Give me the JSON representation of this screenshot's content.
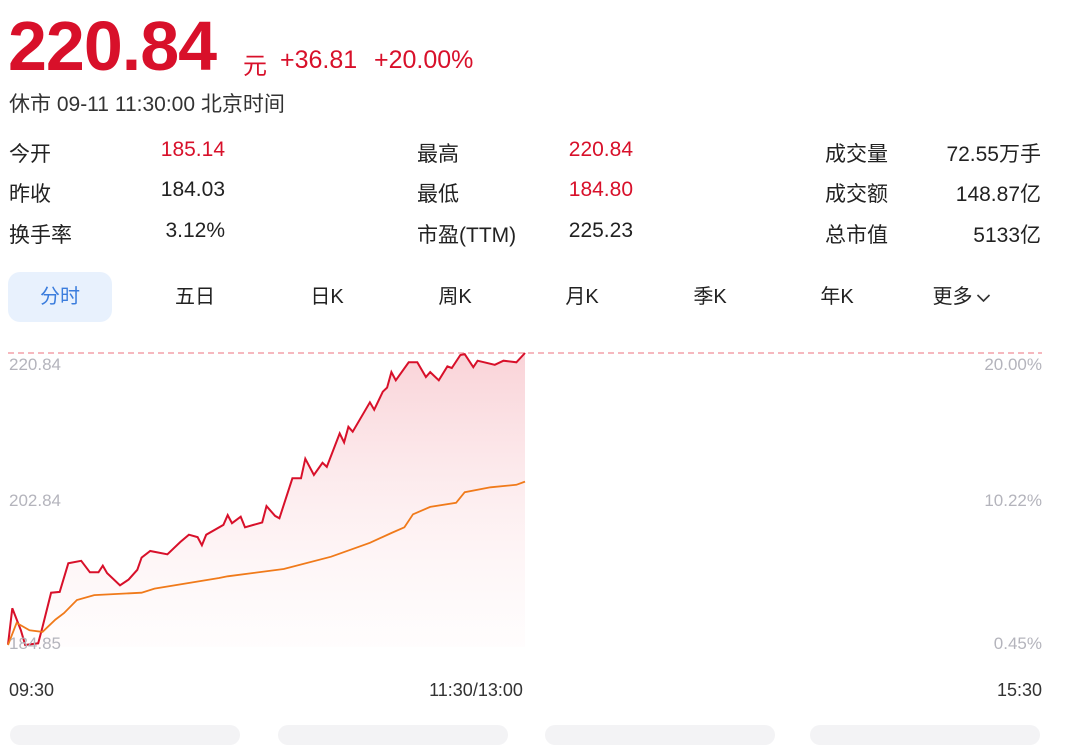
{
  "quote": {
    "price": "220.84",
    "unit": "元",
    "change": "+36.81",
    "change_pct": "+20.00%",
    "status": "休市 09-11 11:30:00 北京时间"
  },
  "stats": [
    [
      {
        "label": "今开",
        "value": "185.14",
        "red": true
      },
      {
        "label": "最高",
        "value": "220.84",
        "red": true
      },
      {
        "label": "成交量",
        "value": "72.55万手",
        "red": false
      }
    ],
    [
      {
        "label": "昨收",
        "value": "184.03",
        "red": false
      },
      {
        "label": "最低",
        "value": "184.80",
        "red": true
      },
      {
        "label": "成交额",
        "value": "148.87亿",
        "red": false
      }
    ],
    [
      {
        "label": "换手率",
        "value": "3.12%",
        "red": false
      },
      {
        "label": "市盈(TTM)",
        "value": "225.23",
        "red": false
      },
      {
        "label": "总市值",
        "value": "5133亿",
        "red": false
      }
    ]
  ],
  "tabs": [
    {
      "label": "分时",
      "active": true
    },
    {
      "label": "五日"
    },
    {
      "label": "日K"
    },
    {
      "label": "周K"
    },
    {
      "label": "月K"
    },
    {
      "label": "季K"
    },
    {
      "label": "年K"
    },
    {
      "label": "更多"
    }
  ],
  "colors": {
    "up": "#d8102a",
    "avg": "#f07a1a",
    "active_tab": "#3b7ddd"
  },
  "chart_data": {
    "type": "line",
    "y_left_ticks": [
      "220.84",
      "202.84",
      "184.85"
    ],
    "y_right_ticks": [
      "20.00%",
      "10.22%",
      "0.45%"
    ],
    "x_ticks": [
      "09:30",
      "11:30/13:00",
      "15:30"
    ],
    "ylim": [
      184.85,
      220.84
    ],
    "x_unit": "minutes since 09:30 trading",
    "xlim": [
      0,
      240
    ],
    "reference_line": 220.84,
    "series": [
      {
        "key": "price",
        "color": "#d8102a",
        "x": [
          0,
          1,
          3,
          4,
          7,
          8,
          10,
          12,
          14,
          17,
          19,
          21,
          22,
          23,
          26,
          28,
          30,
          31,
          33,
          37,
          40,
          42,
          44,
          45,
          46,
          50,
          51,
          52,
          54,
          55,
          59,
          60,
          62,
          63,
          66,
          68,
          69,
          71,
          73,
          74,
          77,
          78,
          79,
          80,
          84,
          85,
          87,
          88,
          89,
          90,
          93,
          95,
          97,
          98,
          100,
          102,
          103,
          105,
          106,
          108,
          109,
          113,
          115,
          118,
          120
        ],
        "y": [
          185.14,
          189.6,
          186.9,
          185.1,
          185.3,
          187.3,
          191.5,
          191.6,
          195.1,
          195.4,
          194.0,
          194.0,
          194.8,
          193.9,
          192.4,
          193.1,
          194.3,
          195.8,
          196.6,
          196.2,
          197.7,
          198.6,
          198.3,
          197.3,
          198.6,
          199.8,
          201.0,
          200.0,
          200.8,
          199.5,
          200.1,
          202.1,
          200.9,
          200.6,
          205.5,
          205.5,
          207.9,
          205.9,
          207.4,
          206.9,
          211.0,
          209.9,
          211.8,
          211.2,
          214.8,
          213.9,
          216.1,
          216.6,
          218.5,
          217.5,
          219.7,
          219.7,
          217.9,
          218.5,
          217.5,
          219.2,
          219.0,
          220.6,
          220.7,
          219.1,
          219.9,
          219.4,
          219.9,
          219.7,
          220.84
        ]
      },
      {
        "key": "average",
        "color": "#f07a1a",
        "x": [
          0,
          2,
          5,
          8,
          11,
          13,
          16,
          20,
          31,
          34,
          49,
          51,
          64,
          75,
          84,
          89,
          92,
          94,
          98,
          104,
          106,
          112,
          118,
          120
        ],
        "y": [
          185.1,
          187.8,
          186.9,
          186.7,
          188.2,
          189.0,
          190.6,
          191.2,
          191.5,
          192.0,
          193.3,
          193.5,
          194.4,
          195.9,
          197.6,
          198.8,
          199.5,
          201.1,
          202.0,
          202.5,
          203.8,
          204.4,
          204.7,
          205.1
        ]
      }
    ]
  }
}
